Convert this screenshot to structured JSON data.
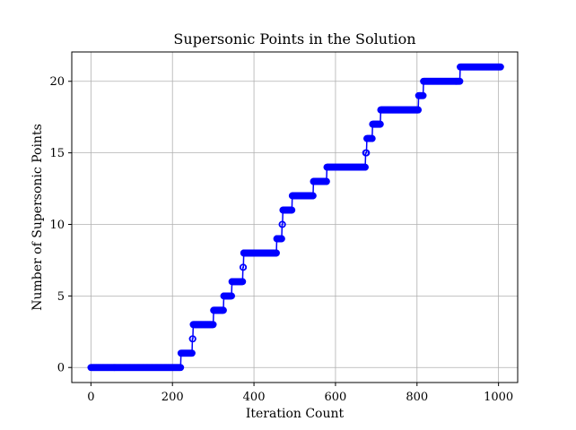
{
  "chart_data": {
    "type": "line",
    "title": "Supersonic Points in the Solution",
    "xlabel": "Iteration Count",
    "ylabel": "Number of Supersonic Points",
    "xlim": [
      -47,
      1047
    ],
    "ylim": [
      -1.05,
      22.05
    ],
    "xticks": [
      0,
      200,
      400,
      600,
      800,
      1000
    ],
    "yticks": [
      0,
      5,
      10,
      15,
      20
    ],
    "grid": true,
    "marker": "open-circle",
    "color": "#0000ff",
    "series": [
      {
        "steps": [
          {
            "x_start": 0,
            "x_end": 220,
            "y": 0
          },
          {
            "x_start": 221,
            "x_end": 248,
            "y": 1
          },
          {
            "x_start": 249,
            "x_end": 250,
            "y": 2
          },
          {
            "x_start": 251,
            "x_end": 300,
            "y": 3
          },
          {
            "x_start": 301,
            "x_end": 325,
            "y": 4
          },
          {
            "x_start": 326,
            "x_end": 345,
            "y": 5
          },
          {
            "x_start": 346,
            "x_end": 372,
            "y": 6
          },
          {
            "x_start": 373,
            "x_end": 374,
            "y": 7
          },
          {
            "x_start": 375,
            "x_end": 455,
            "y": 8
          },
          {
            "x_start": 456,
            "x_end": 468,
            "y": 9
          },
          {
            "x_start": 469,
            "x_end": 470,
            "y": 10
          },
          {
            "x_start": 471,
            "x_end": 493,
            "y": 11
          },
          {
            "x_start": 494,
            "x_end": 545,
            "y": 12
          },
          {
            "x_start": 546,
            "x_end": 578,
            "y": 13
          },
          {
            "x_start": 579,
            "x_end": 673,
            "y": 14
          },
          {
            "x_start": 674,
            "x_end": 676,
            "y": 15
          },
          {
            "x_start": 677,
            "x_end": 690,
            "y": 16
          },
          {
            "x_start": 691,
            "x_end": 710,
            "y": 17
          },
          {
            "x_start": 711,
            "x_end": 803,
            "y": 18
          },
          {
            "x_start": 804,
            "x_end": 815,
            "y": 19
          },
          {
            "x_start": 816,
            "x_end": 905,
            "y": 20
          },
          {
            "x_start": 906,
            "x_end": 1005,
            "y": 21
          }
        ]
      }
    ]
  }
}
